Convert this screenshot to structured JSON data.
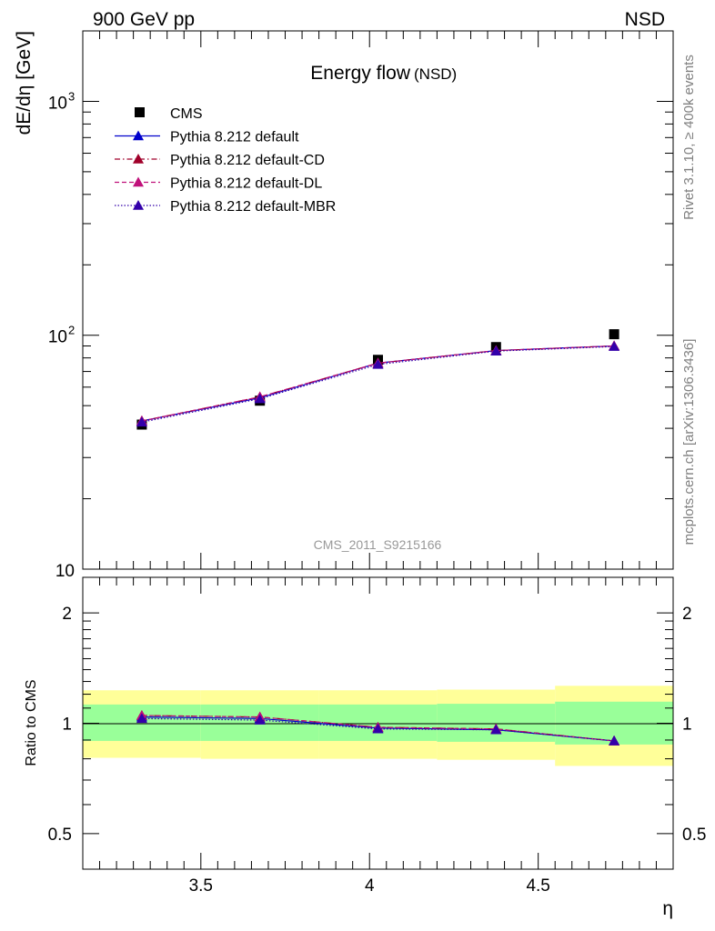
{
  "header": {
    "left": "900 GeV pp",
    "right": "NSD"
  },
  "side": {
    "rivet": "Rivet 3.1.10, ≥ 400k events",
    "mcplots": "mcplots.cern.ch [arXiv:1306.3436]"
  },
  "chart_data": [
    {
      "type": "line",
      "panel": "main",
      "title": "Energy flow",
      "title_suffix": "(NSD)",
      "ylabel": "dE/dη [GeV]",
      "yscale": "log",
      "ylim": [
        10,
        2000
      ],
      "xlim": [
        3.15,
        4.9
      ],
      "yticks": [
        10,
        100,
        1000
      ],
      "ytick_labels": [
        "10",
        "10",
        "10"
      ],
      "ytick_superscripts": [
        "",
        "2",
        "3"
      ],
      "watermark": "CMS_2011_S9215166",
      "series": [
        {
          "name": "CMS",
          "style": "marker",
          "color": "#000000",
          "x": [
            3.325,
            3.675,
            4.025,
            4.375,
            4.725
          ],
          "y": [
            41.5,
            52.5,
            78.5,
            89.0,
            101.0
          ]
        },
        {
          "name": "Pythia 8.212 default",
          "style": "solid",
          "color": "#0000cc",
          "x": [
            3.325,
            3.675,
            4.025,
            4.375,
            4.725
          ],
          "y": [
            43.0,
            54.0,
            76.0,
            86.0,
            90.0
          ]
        },
        {
          "name": "Pythia 8.212 default-CD",
          "style": "dashdot",
          "color": "#a0002a",
          "x": [
            3.325,
            3.675,
            4.025,
            4.375,
            4.725
          ],
          "y": [
            43.0,
            54.5,
            76.0,
            86.0,
            90.0
          ]
        },
        {
          "name": "Pythia 8.212 default-DL",
          "style": "dashed",
          "color": "#c0107a",
          "x": [
            3.325,
            3.675,
            4.025,
            4.375,
            4.725
          ],
          "y": [
            43.0,
            54.5,
            76.0,
            86.0,
            90.0
          ]
        },
        {
          "name": "Pythia 8.212 default-MBR",
          "style": "dotted",
          "color": "#3300aa",
          "x": [
            3.325,
            3.675,
            4.025,
            4.375,
            4.725
          ],
          "y": [
            42.5,
            53.5,
            75.0,
            85.5,
            89.5
          ]
        }
      ]
    },
    {
      "type": "line",
      "panel": "ratio",
      "ylabel": "Ratio to CMS",
      "xlabel": "η",
      "yscale": "log",
      "ylim": [
        0.4,
        2.5
      ],
      "xlim": [
        3.15,
        4.9
      ],
      "xticks": [
        3.5,
        4.0,
        4.5
      ],
      "xtick_labels": [
        "3.5",
        "4",
        "4.5"
      ],
      "yticks": [
        0.5,
        1,
        2
      ],
      "ytick_labels": [
        "0.5",
        "1",
        "2"
      ],
      "bands": [
        {
          "x0": 3.15,
          "x1": 3.5,
          "inner": [
            0.895,
            1.125
          ],
          "outer": [
            0.805,
            1.23
          ]
        },
        {
          "x0": 3.5,
          "x1": 3.85,
          "inner": [
            0.895,
            1.125
          ],
          "outer": [
            0.8,
            1.23
          ]
        },
        {
          "x0": 3.85,
          "x1": 4.2,
          "inner": [
            0.895,
            1.125
          ],
          "outer": [
            0.8,
            1.23
          ]
        },
        {
          "x0": 4.2,
          "x1": 4.55,
          "inner": [
            0.89,
            1.13
          ],
          "outer": [
            0.795,
            1.235
          ]
        },
        {
          "x0": 4.55,
          "x1": 4.9,
          "inner": [
            0.875,
            1.145
          ],
          "outer": [
            0.765,
            1.265
          ]
        }
      ],
      "series": [
        {
          "name": "Pythia 8.212 default",
          "style": "solid",
          "color": "#0000cc",
          "x": [
            3.325,
            3.675,
            4.025,
            4.375,
            4.725
          ],
          "y": [
            1.04,
            1.03,
            0.97,
            0.96,
            0.895
          ]
        },
        {
          "name": "Pythia 8.212 default-CD",
          "style": "dashdot",
          "color": "#a0002a",
          "x": [
            3.325,
            3.675,
            4.025,
            4.375,
            4.725
          ],
          "y": [
            1.05,
            1.04,
            0.975,
            0.965,
            0.895
          ]
        },
        {
          "name": "Pythia 8.212 default-DL",
          "style": "dashed",
          "color": "#c0107a",
          "x": [
            3.325,
            3.675,
            4.025,
            4.375,
            4.725
          ],
          "y": [
            1.05,
            1.04,
            0.975,
            0.965,
            0.895
          ]
        },
        {
          "name": "Pythia 8.212 default-MBR",
          "style": "dotted",
          "color": "#3300aa",
          "x": [
            3.325,
            3.675,
            4.025,
            4.375,
            4.725
          ],
          "y": [
            1.03,
            1.02,
            0.965,
            0.96,
            0.895
          ]
        }
      ]
    }
  ]
}
